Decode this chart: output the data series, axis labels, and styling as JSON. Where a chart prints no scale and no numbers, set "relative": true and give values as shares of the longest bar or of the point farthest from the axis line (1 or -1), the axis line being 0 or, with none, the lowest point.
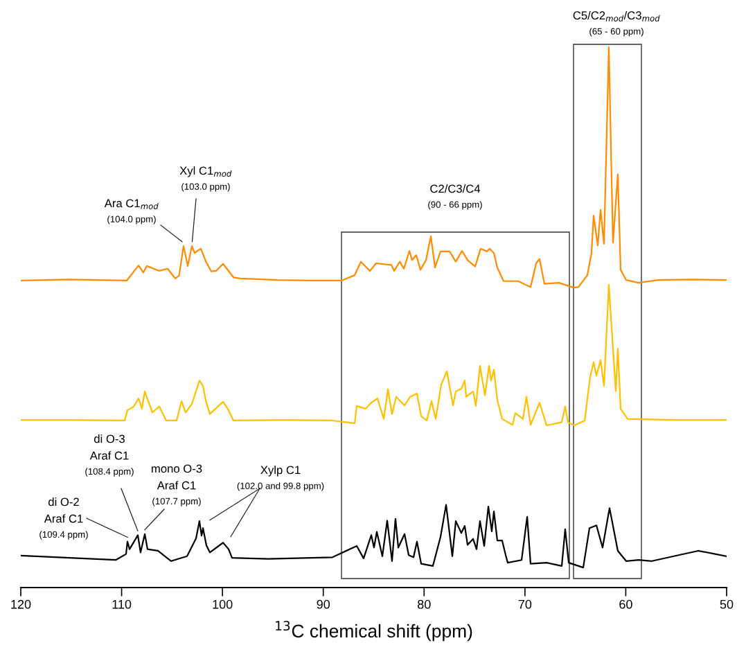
{
  "chart_data": {
    "type": "line",
    "relative": true,
    "xlabel": "$^{13}$C chemical shift (ppm)",
    "xlim": [
      120,
      50
    ],
    "xticks": [
      120,
      110,
      100,
      90,
      80,
      70,
      60,
      50
    ],
    "tick_labels": "x",
    "grid": false,
    "marker": "none",
    "line_style": "solid",
    "series": [
      {
        "color": "#ff8c00",
        "x": [
          120.0,
          115.19,
          109.49,
          108.32,
          107.84,
          107.5,
          106.26,
          105.44,
          104.68,
          104.3,
          103.86,
          103.44,
          103.03,
          102.76,
          102.48,
          102.14,
          101.66,
          101.11,
          100.63,
          99.94,
          98.91,
          98.22,
          94.58,
          91.15,
          88.19,
          86.89,
          86.27,
          85.38,
          84.76,
          83.25,
          82.97,
          82.42,
          82.01,
          81.46,
          81.19,
          80.78,
          80.36,
          79.81,
          79.33,
          78.92,
          78.37,
          77.48,
          76.86,
          76.24,
          75.69,
          74.94,
          74.39,
          73.77,
          73.5,
          73.08,
          72.74,
          72.12,
          70.68,
          69.44,
          68.89,
          68.55,
          68.07,
          66.62,
          65.18,
          64.7,
          63.81,
          63.4,
          63.19,
          62.78,
          62.5,
          62.16,
          61.68,
          61.27,
          60.79,
          60.51,
          59.96,
          58.72,
          56.8,
          53.37,
          50.0
        ],
        "values": [
          0.568,
          0.57,
          0.568,
          0.596,
          0.583,
          0.595,
          0.586,
          0.59,
          0.572,
          0.577,
          0.632,
          0.595,
          0.632,
          0.619,
          0.623,
          0.627,
          0.604,
          0.585,
          0.586,
          0.599,
          0.574,
          0.572,
          0.569,
          0.568,
          0.568,
          0.578,
          0.603,
          0.586,
          0.6,
          0.597,
          0.586,
          0.603,
          0.59,
          0.623,
          0.606,
          0.615,
          0.588,
          0.606,
          0.65,
          0.592,
          0.622,
          0.622,
          0.603,
          0.623,
          0.606,
          0.594,
          0.627,
          0.622,
          0.627,
          0.619,
          0.592,
          0.567,
          0.567,
          0.556,
          0.6,
          0.608,
          0.562,
          0.564,
          0.555,
          0.556,
          0.578,
          0.619,
          0.688,
          0.633,
          0.699,
          0.636,
          1.0,
          0.638,
          0.765,
          0.588,
          0.569,
          0.564,
          0.569,
          0.57,
          0.569
        ]
      },
      {
        "color": "#ffc000",
        "x": [
          120.0,
          115.0,
          109.7,
          109.42,
          108.8,
          108.32,
          107.98,
          107.71,
          106.95,
          106.26,
          105.58,
          104.54,
          104.06,
          103.65,
          103.03,
          102.28,
          101.93,
          101.66,
          101.25,
          99.94,
          99.39,
          98.91,
          94.0,
          89.09,
          86.89,
          86.68,
          85.79,
          85.24,
          84.62,
          84.0,
          83.59,
          83.18,
          82.77,
          81.94,
          81.39,
          80.71,
          80.29,
          79.74,
          79.26,
          78.85,
          78.3,
          77.75,
          77.13,
          76.86,
          76.31,
          75.97,
          75.83,
          75.14,
          74.87,
          74.46,
          73.97,
          73.56,
          73.36,
          73.08,
          72.74,
          72.26,
          71.23,
          70.95,
          70.2,
          69.85,
          69.44,
          68.55,
          67.86,
          66.35,
          66.01,
          65.73,
          65.11,
          64.08,
          63.53,
          63.19,
          62.91,
          62.5,
          62.16,
          61.68,
          60.99,
          60.79,
          60.51,
          59.82,
          55.0,
          50.0
        ],
        "values": [
          0.31,
          0.31,
          0.309,
          0.328,
          0.335,
          0.35,
          0.331,
          0.363,
          0.324,
          0.335,
          0.309,
          0.309,
          0.345,
          0.324,
          0.34,
          0.383,
          0.373,
          0.347,
          0.321,
          0.344,
          0.328,
          0.309,
          0.31,
          0.309,
          0.304,
          0.336,
          0.331,
          0.342,
          0.35,
          0.312,
          0.367,
          0.321,
          0.353,
          0.337,
          0.353,
          0.359,
          0.317,
          0.309,
          0.345,
          0.312,
          0.376,
          0.4,
          0.337,
          0.363,
          0.368,
          0.383,
          0.353,
          0.363,
          0.336,
          0.41,
          0.356,
          0.41,
          0.383,
          0.403,
          0.347,
          0.312,
          0.301,
          0.323,
          0.312,
          0.353,
          0.301,
          0.342,
          0.3,
          0.306,
          0.335,
          0.306,
          0.3,
          0.309,
          0.39,
          0.417,
          0.392,
          0.421,
          0.373,
          0.56,
          0.364,
          0.442,
          0.331,
          0.312,
          0.31,
          0.31
        ]
      },
      {
        "color": "#000000",
        "x": [
          120.0,
          110.59,
          109.56,
          109.42,
          109.21,
          108.39,
          108.12,
          107.7,
          107.43,
          106.4,
          105.09,
          103.51,
          102.62,
          102.28,
          102.07,
          101.93,
          101.59,
          101.25,
          99.94,
          99.39,
          99.05,
          95.48,
          89.09,
          86.68,
          86.0,
          85.24,
          84.97,
          84.69,
          84.14,
          83.66,
          83.18,
          82.84,
          82.56,
          81.94,
          81.53,
          81.05,
          80.71,
          80.29,
          79.13,
          78.37,
          77.82,
          77.2,
          76.86,
          76.31,
          75.97,
          75.69,
          75.14,
          74.8,
          74.46,
          74.04,
          73.63,
          73.29,
          73.08,
          72.74,
          72.26,
          71.91,
          71.71,
          70.33,
          69.78,
          69.44,
          67.86,
          66.35,
          66.01,
          65.66,
          64.22,
          63.6,
          62.91,
          62.3,
          61.61,
          60.79,
          59.96,
          58.72,
          57.42,
          52.82,
          50.0
        ],
        "values": [
          0.059,
          0.051,
          0.062,
          0.085,
          0.071,
          0.097,
          0.065,
          0.099,
          0.071,
          0.068,
          0.049,
          0.058,
          0.091,
          0.123,
          0.096,
          0.11,
          0.078,
          0.065,
          0.083,
          0.071,
          0.055,
          0.053,
          0.056,
          0.077,
          0.054,
          0.097,
          0.074,
          0.103,
          0.058,
          0.124,
          0.049,
          0.127,
          0.074,
          0.099,
          0.06,
          0.056,
          0.085,
          0.044,
          0.04,
          0.094,
          0.153,
          0.058,
          0.123,
          0.101,
          0.114,
          0.079,
          0.09,
          0.071,
          0.123,
          0.077,
          0.15,
          0.104,
          0.141,
          0.087,
          0.087,
          0.06,
          0.046,
          0.051,
          0.131,
          0.044,
          0.046,
          0.04,
          0.108,
          0.046,
          0.037,
          0.11,
          0.115,
          0.074,
          0.147,
          0.068,
          0.049,
          0.051,
          0.049,
          0.068,
          0.058
        ]
      }
    ],
    "annotations": [
      {
        "text": "Ara C1$_{mod}$\n(104.0 ppm)",
        "x": 104.0,
        "y": 0.632
      },
      {
        "text": "Xyl C1$_{mod}$\n(103.0 ppm)",
        "x": 103.0,
        "y": 0.632
      },
      {
        "text": "di O-2\nAraf C1\n(109.4 ppm)",
        "x": 109.4,
        "y": 0.085
      },
      {
        "text": "di O-3\nAraf C1\n(108.4 ppm)",
        "x": 108.4,
        "y": 0.097
      },
      {
        "text": "mono O-3\nAraf C1\n(107.7 ppm)",
        "x": 107.7,
        "y": 0.099
      },
      "Xylp C1\n(102.0 and 99.8 ppm)",
      "C2/C3/C4\n(90 - 66 ppm)",
      "C5/C2$_{mod}$/C3$_{mod}$\n(65 - 60 ppm)"
    ]
  }
}
